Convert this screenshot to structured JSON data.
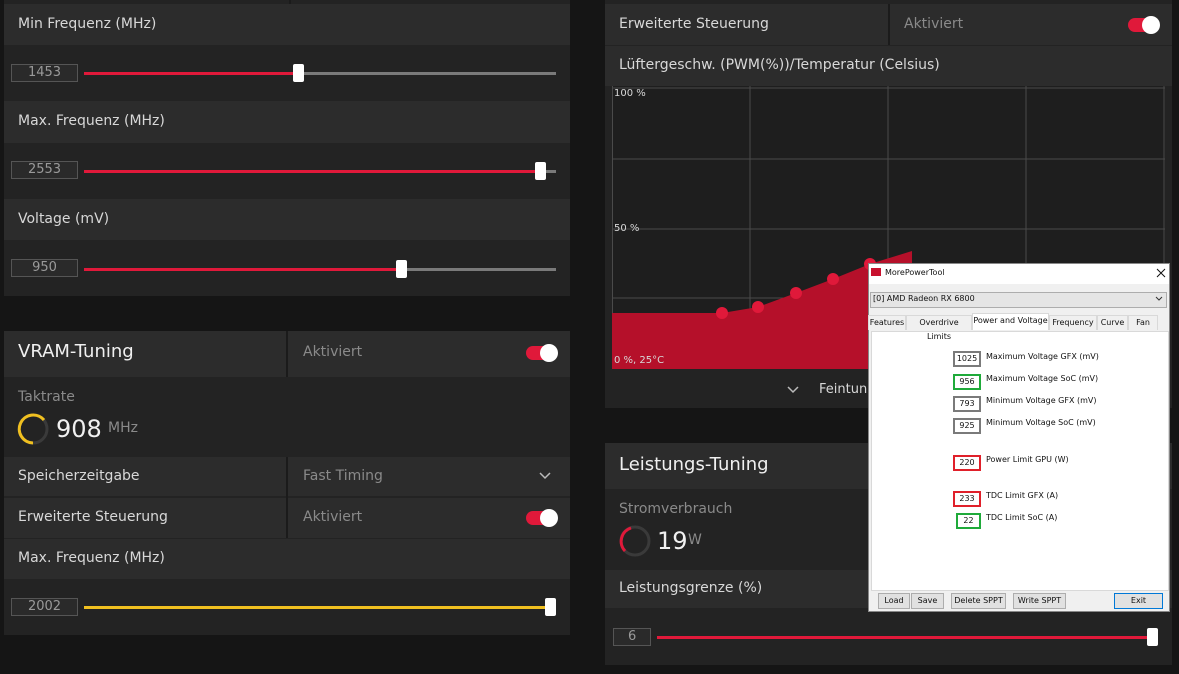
{
  "left_panel": {
    "min_freq": {
      "label": "Min Frequenz (MHz)",
      "value": 1453
    },
    "max_freq": {
      "label": "Max. Frequenz (MHz)",
      "value": 2553
    },
    "voltage": {
      "label": "Voltage (mV)",
      "value": 950
    }
  },
  "vram_tuning": {
    "title": "VRAM-Tuning",
    "status": "Aktiviert",
    "clock_label": "Taktrate",
    "clock_value": 908,
    "clock_unit": "MHz",
    "memory_timing_label": "Speicherzeitgabe",
    "memory_timing_value": "Fast Timing",
    "advanced_control_label": "Erweiterte Steuerung",
    "advanced_control_status": "Aktiviert",
    "max_freq_label": "Max. Frequenz (MHz)",
    "max_freq_value": 2002
  },
  "fan_panel": {
    "advanced_control_label": "Erweiterte Steuerung",
    "advanced_control_status": "Aktiviert",
    "curve_title": "Lüftergeschw. (PWM(%))/Temperatur (Celsius)",
    "y_top": "100 %",
    "y_mid": "50 %",
    "origin": "0 %, 25°C",
    "fine_tuning": "Feintuni"
  },
  "power_tuning": {
    "title": "Leistungs-Tuning",
    "consumption_label": "Stromverbrauch",
    "consumption_value": 19,
    "consumption_unit": "W",
    "limit_label": "Leistungsgrenze (%)",
    "limit_value": 6
  },
  "more_power_tool": {
    "title": "MorePowerTool",
    "gpu": "[0] AMD Radeon RX 6800",
    "tabs": [
      "Features",
      "Overdrive Limits",
      "Power and Voltage",
      "Frequency",
      "Curve",
      "Fan"
    ],
    "fields": [
      {
        "value": 1025,
        "label": "Maximum Voltage GFX (mV)",
        "border_color": "#7a7a7a"
      },
      {
        "value": 956,
        "label": "Maximum Voltage SoC (mV)",
        "border_color": "#1faa3a"
      },
      {
        "value": 793,
        "label": "Minimum Voltage GFX (mV)",
        "border_color": "#7a7a7a"
      },
      {
        "value": 925,
        "label": "Minimum Voltage SoC (mV)",
        "border_color": "#7a7a7a"
      },
      {
        "value": 220,
        "label": "Power Limit GPU (W)",
        "border_color": "#e0202a"
      },
      {
        "value": 233,
        "label": "TDC Limit GFX (A)",
        "border_color": "#e0202a"
      },
      {
        "value": 22,
        "label": "TDC Limit SoC (A)",
        "border_color": "#1faa3a"
      }
    ],
    "buttons": [
      "Load",
      "Save",
      "Delete SPPT",
      "Write SPPT",
      "Exit"
    ]
  }
}
